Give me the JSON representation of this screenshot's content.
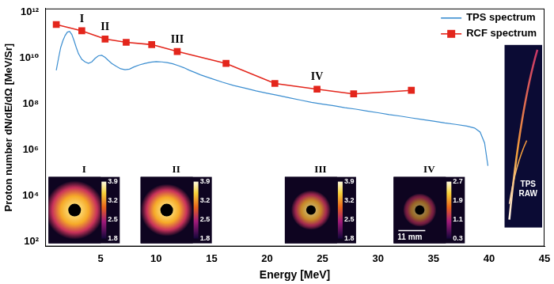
{
  "chart_data": {
    "type": "line",
    "x_label": "Energy [MeV]",
    "y_label": "Proton number dN/dE/dΩ [MeV/Sr]",
    "log": "y",
    "grid": false,
    "legend": "upper right",
    "xlim": [
      0,
      45
    ],
    "xticks": [
      5,
      10,
      15,
      20,
      25,
      30,
      35,
      40,
      45
    ],
    "ylim": [
      60,
      1500000000000.0
    ],
    "yticks": [
      {
        "value": 100.0,
        "label": "10²"
      },
      {
        "value": 10000.0,
        "label": "10⁴"
      },
      {
        "value": 1000000.0,
        "label": "10⁶"
      },
      {
        "value": 100000000.0,
        "label": "10⁸"
      },
      {
        "value": 10000000000.0,
        "label": "10¹⁰"
      },
      {
        "value": 1000000000000.0,
        "label": "10¹²"
      }
    ],
    "series": [
      {
        "name": "TPS spectrum",
        "color": "#3a8dd0",
        "marker": "none",
        "line_style": "solid",
        "x": [
          1.0,
          1.2,
          1.4,
          1.6,
          1.8,
          2.0,
          2.2,
          2.4,
          2.6,
          2.8,
          3.0,
          3.3,
          3.6,
          3.9,
          4.2,
          4.5,
          4.8,
          5.1,
          5.4,
          5.7,
          6.0,
          6.4,
          6.8,
          7.2,
          7.6,
          8.0,
          8.5,
          9.0,
          9.5,
          10.0,
          10.5,
          11.0,
          11.5,
          12.0,
          12.5,
          13.0,
          13.5,
          14.0,
          15.0,
          16.0,
          17.0,
          18.0,
          19.0,
          20.0,
          21.0,
          22.0,
          23.0,
          24.0,
          25.0,
          26.0,
          27.0,
          28.0,
          29.0,
          30.0,
          31.0,
          32.0,
          33.0,
          34.0,
          35.0,
          36.0,
          37.0,
          38.0,
          38.7,
          39.2,
          39.6,
          39.9
        ],
        "values": [
          3000000000.0,
          10000000000.0,
          30000000000.0,
          60000000000.0,
          100000000000.0,
          140000000000.0,
          150000000000.0,
          110000000000.0,
          60000000000.0,
          30000000000.0,
          16000000000.0,
          9000000000.0,
          7000000000.0,
          6000000000.0,
          7000000000.0,
          10000000000.0,
          13000000000.0,
          13500000000.0,
          11000000000.0,
          8000000000.0,
          6000000000.0,
          4500000000.0,
          3500000000.0,
          3200000000.0,
          3400000000.0,
          4200000000.0,
          5200000000.0,
          6000000000.0,
          6800000000.0,
          7200000000.0,
          7000000000.0,
          6500000000.0,
          5800000000.0,
          4800000000.0,
          3900000000.0,
          3000000000.0,
          2400000000.0,
          1900000000.0,
          1300000000.0,
          900000000.0,
          650000000.0,
          500000000.0,
          380000000.0,
          300000000.0,
          240000000.0,
          190000000.0,
          150000000.0,
          120000000.0,
          100000000.0,
          85000000.0,
          70000000.0,
          60000000.0,
          50000000.0,
          42000000.0,
          35000000.0,
          30000000.0,
          25000000.0,
          21000000.0,
          18000000.0,
          15000000.0,
          13000000.0,
          11000000.0,
          9000000.0,
          6000000.0,
          2000000.0,
          200000.0
        ]
      },
      {
        "name": "RCF spectrum",
        "color": "#e3261c",
        "marker": "square",
        "line_style": "solid",
        "x": [
          1.0,
          3.3,
          5.4,
          7.3,
          9.6,
          11.9,
          16.3,
          20.7,
          24.5,
          27.8,
          33.0
        ],
        "values": [
          300000000000.0,
          160000000000.0,
          70000000000.0,
          50000000000.0,
          40000000000.0,
          20000000000.0,
          6000000000.0,
          800000000.0,
          450000000.0,
          280000000.0,
          400000000.0
        ]
      }
    ],
    "annotations": [
      {
        "text": "I",
        "series": "RCF spectrum",
        "x": 3.3
      },
      {
        "text": "II",
        "series": "RCF spectrum",
        "x": 5.4
      },
      {
        "text": "III",
        "series": "RCF spectrum",
        "x": 11.9
      },
      {
        "text": "IV",
        "series": "RCF spectrum",
        "x": 24.5
      }
    ],
    "insets": [
      {
        "label": "I",
        "colorbar_ticks": [
          1.8,
          2.5,
          3.2,
          3.9
        ]
      },
      {
        "label": "II",
        "colorbar_ticks": [
          1.8,
          2.5,
          3.2,
          3.9
        ]
      },
      {
        "label": "III",
        "colorbar_ticks": [
          1.8,
          2.5,
          3.2,
          3.9
        ]
      },
      {
        "label": "IV",
        "colorbar_ticks": [
          0.3,
          1.1,
          1.9,
          2.7
        ],
        "scale_bar": "11 mm"
      }
    ],
    "raw_image_label": "TPS RAW"
  }
}
